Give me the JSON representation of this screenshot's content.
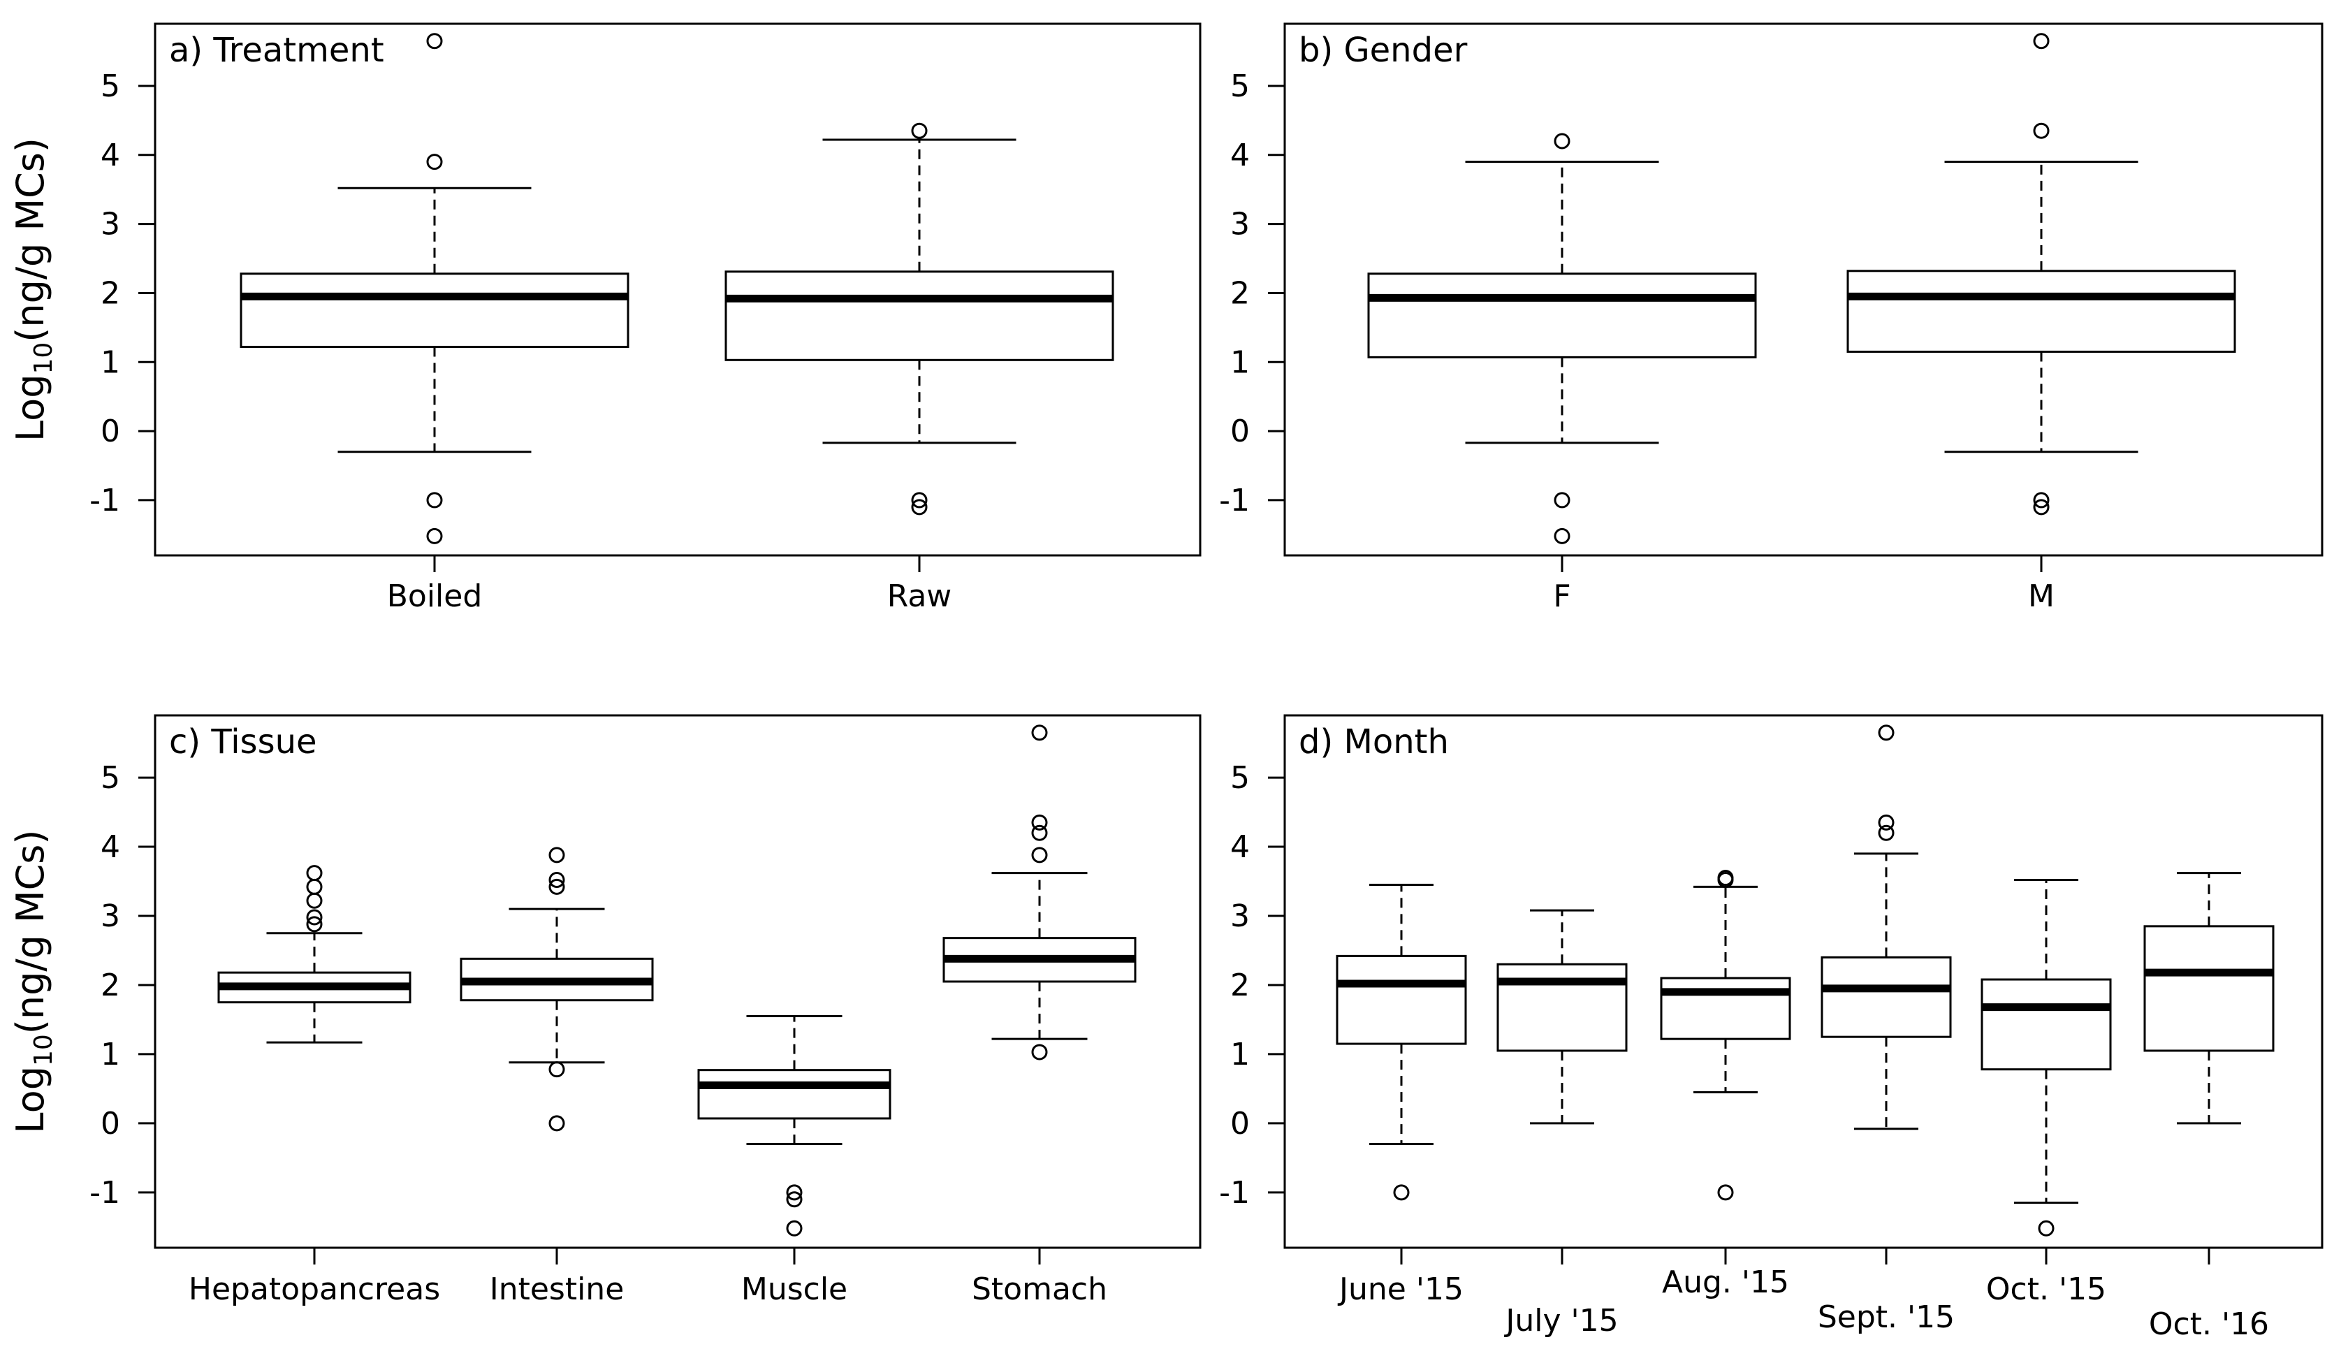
{
  "chart_data": [
    {
      "type": "boxplot",
      "title": "a) Treatment",
      "ylabel": "Log10(ng/g MCs)",
      "ylim": [
        -1.8,
        5.9
      ],
      "yticks": [
        -1,
        0,
        1,
        2,
        3,
        4,
        5
      ],
      "categories": [
        "Boiled",
        "Raw"
      ],
      "boxes": [
        {
          "q1": 1.22,
          "median": 1.95,
          "q3": 2.28,
          "whisker_low": -0.3,
          "whisker_high": 3.52,
          "outliers": [
            5.65,
            3.9,
            -1.0,
            -1.52
          ]
        },
        {
          "q1": 1.03,
          "median": 1.92,
          "q3": 2.31,
          "whisker_low": -0.17,
          "whisker_high": 4.22,
          "outliers": [
            4.35,
            -1.0,
            -1.1
          ]
        }
      ]
    },
    {
      "type": "boxplot",
      "title": "b) Gender",
      "ylabel": "",
      "ylim": [
        -1.8,
        5.9
      ],
      "yticks": [
        -1,
        0,
        1,
        2,
        3,
        4,
        5
      ],
      "categories": [
        "F",
        "M"
      ],
      "boxes": [
        {
          "q1": 1.07,
          "median": 1.93,
          "q3": 2.28,
          "whisker_low": -0.17,
          "whisker_high": 3.9,
          "outliers": [
            4.2,
            -1.0,
            -1.52
          ]
        },
        {
          "q1": 1.15,
          "median": 1.95,
          "q3": 2.32,
          "whisker_low": -0.3,
          "whisker_high": 3.9,
          "outliers": [
            5.65,
            4.35,
            -1.0,
            -1.1
          ]
        }
      ]
    },
    {
      "type": "boxplot",
      "title": "c) Tissue",
      "ylabel": "Log10(ng/g MCs)",
      "ylim": [
        -1.8,
        5.9
      ],
      "yticks": [
        -1,
        0,
        1,
        2,
        3,
        4,
        5
      ],
      "categories": [
        "Hepatopancreas",
        "Intestine",
        "Muscle",
        "Stomach"
      ],
      "boxes": [
        {
          "q1": 1.75,
          "median": 1.98,
          "q3": 2.18,
          "whisker_low": 1.17,
          "whisker_high": 2.75,
          "outliers": [
            3.62,
            3.42,
            3.22,
            2.98,
            2.88
          ]
        },
        {
          "q1": 1.78,
          "median": 2.05,
          "q3": 2.38,
          "whisker_low": 0.88,
          "whisker_high": 3.1,
          "outliers": [
            3.88,
            3.52,
            3.42,
            0.78,
            0.0
          ]
        },
        {
          "q1": 0.07,
          "median": 0.55,
          "q3": 0.77,
          "whisker_low": -0.3,
          "whisker_high": 1.55,
          "outliers": [
            -1.0,
            -1.1,
            -1.52
          ]
        },
        {
          "q1": 2.05,
          "median": 2.38,
          "q3": 2.68,
          "whisker_low": 1.22,
          "whisker_high": 3.62,
          "outliers": [
            5.65,
            4.35,
            4.2,
            3.88,
            1.03
          ]
        }
      ]
    },
    {
      "type": "boxplot",
      "title": "d) Month",
      "ylabel": "",
      "ylim": [
        -1.8,
        5.9
      ],
      "yticks": [
        -1,
        0,
        1,
        2,
        3,
        4,
        5
      ],
      "categories": [
        "June '15",
        "July '15",
        "Aug. '15",
        "Sept. '15",
        "Oct. '15",
        "Oct. '16"
      ],
      "boxes": [
        {
          "q1": 1.15,
          "median": 2.02,
          "q3": 2.42,
          "whisker_low": -0.3,
          "whisker_high": 3.45,
          "outliers": [
            -1.0
          ]
        },
        {
          "q1": 1.05,
          "median": 2.05,
          "q3": 2.3,
          "whisker_low": 0.0,
          "whisker_high": 3.08,
          "outliers": []
        },
        {
          "q1": 1.22,
          "median": 1.9,
          "q3": 2.1,
          "whisker_low": 0.45,
          "whisker_high": 3.42,
          "outliers": [
            3.55,
            3.52,
            -1.0
          ]
        },
        {
          "q1": 1.25,
          "median": 1.95,
          "q3": 2.4,
          "whisker_low": -0.08,
          "whisker_high": 3.9,
          "outliers": [
            5.65,
            4.35,
            4.2
          ]
        },
        {
          "q1": 0.78,
          "median": 1.68,
          "q3": 2.08,
          "whisker_low": -1.15,
          "whisker_high": 3.52,
          "outliers": [
            -1.52
          ]
        },
        {
          "q1": 1.05,
          "median": 2.18,
          "q3": 2.85,
          "whisker_low": 0.0,
          "whisker_high": 3.62,
          "outliers": []
        }
      ]
    }
  ]
}
